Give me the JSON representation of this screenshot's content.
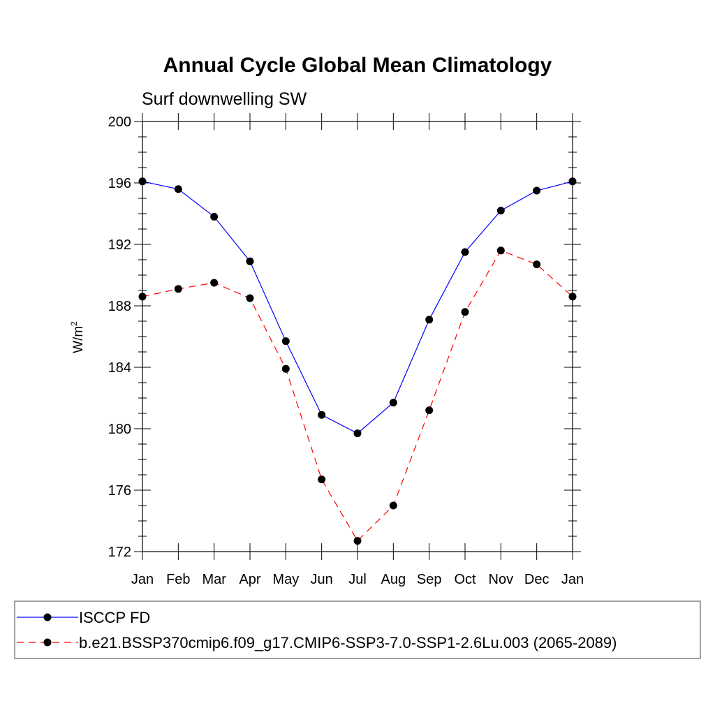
{
  "chart_data": {
    "type": "line",
    "title": "Annual Cycle Global Mean Climatology",
    "subtitle": "Surf downwelling SW",
    "ylabel": "W/m",
    "ylabel_superscript": "2",
    "xlabel": "",
    "categories": [
      "Jan",
      "Feb",
      "Mar",
      "Apr",
      "May",
      "Jun",
      "Jul",
      "Aug",
      "Sep",
      "Oct",
      "Nov",
      "Dec",
      "Jan"
    ],
    "ylim": [
      172,
      200
    ],
    "yticks": [
      172,
      176,
      180,
      184,
      188,
      192,
      196,
      200
    ],
    "series": [
      {
        "name": "ISCCP FD",
        "color": "#0000ff",
        "dashed": false,
        "marker": "filled-circle",
        "values": [
          196.1,
          195.6,
          193.8,
          190.9,
          185.7,
          180.9,
          179.7,
          181.7,
          187.1,
          191.5,
          194.2,
          195.5,
          196.1
        ]
      },
      {
        "name": "b.e21.BSSP370cmip6.f09_g17.CMIP6-SSP3-7.0-SSP1-2.6Lu.003 (2065-2089)",
        "color": "#ff0000",
        "dashed": true,
        "marker": "filled-circle",
        "values": [
          188.6,
          189.1,
          189.5,
          188.5,
          183.9,
          176.7,
          172.7,
          175.0,
          181.2,
          187.6,
          191.6,
          190.7,
          188.6
        ]
      }
    ],
    "legend_position": "bottom"
  }
}
